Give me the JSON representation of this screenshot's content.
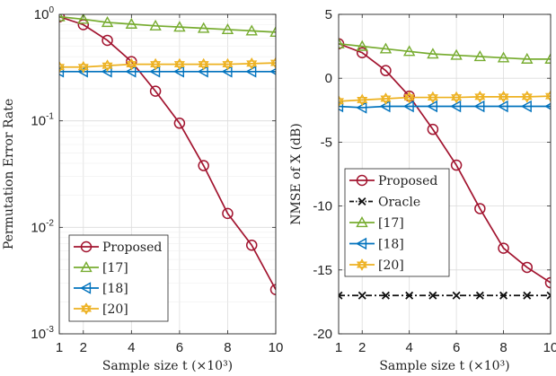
{
  "chart_data": [
    {
      "type": "line",
      "ylabel": "Permutation Error Rate",
      "xlabel": "Sample size t (×10³)",
      "x": [
        1,
        2,
        3,
        4,
        5,
        6,
        7,
        8,
        9,
        10
      ],
      "xticks": [
        "1",
        "2",
        "4",
        "6",
        "8",
        "10"
      ],
      "xtick_values": [
        1,
        2,
        4,
        6,
        8,
        10
      ],
      "xlim": [
        1,
        10
      ],
      "yscale": "log",
      "ylim": [
        0.001,
        1
      ],
      "ytick_values": [
        1,
        0.1,
        0.01,
        0.001
      ],
      "ytick_labels": [
        {
          "base": "10",
          "exp": "0"
        },
        {
          "base": "10",
          "exp": "-1"
        },
        {
          "base": "10",
          "exp": "-2"
        },
        {
          "base": "10",
          "exp": "-3"
        }
      ],
      "grid": true,
      "legend_position": "bottom-left",
      "series": [
        {
          "name": "Proposed",
          "color": "#a2142f",
          "marker": "circle",
          "dash": "solid",
          "values": [
            0.95,
            0.8,
            0.57,
            0.36,
            0.19,
            0.095,
            0.038,
            0.0135,
            0.0068,
            0.0026
          ]
        },
        {
          "name": "[17]",
          "color": "#77ac30",
          "marker": "triangle-up",
          "dash": "solid",
          "values": [
            0.95,
            0.9,
            0.84,
            0.81,
            0.78,
            0.76,
            0.74,
            0.72,
            0.7,
            0.68
          ]
        },
        {
          "name": "[18]",
          "color": "#0072bd",
          "marker": "triangle-left",
          "dash": "solid",
          "values": [
            0.29,
            0.29,
            0.29,
            0.29,
            0.29,
            0.29,
            0.29,
            0.29,
            0.29,
            0.29
          ]
        },
        {
          "name": "[20]",
          "color": "#edb120",
          "marker": "hexagram",
          "dash": "solid",
          "values": [
            0.32,
            0.32,
            0.33,
            0.34,
            0.34,
            0.34,
            0.34,
            0.34,
            0.345,
            0.35
          ]
        }
      ]
    },
    {
      "type": "line",
      "ylabel": "NMSE of X (dB)",
      "xlabel": "Sample size t (×10³)",
      "x": [
        1,
        2,
        3,
        4,
        5,
        6,
        7,
        8,
        9,
        10
      ],
      "xticks": [
        "1",
        "2",
        "4",
        "6",
        "8",
        "10"
      ],
      "xtick_values": [
        1,
        2,
        4,
        6,
        8,
        10
      ],
      "xlim": [
        1,
        10
      ],
      "ylim": [
        -20,
        5
      ],
      "ytick_values": [
        5,
        0,
        -5,
        -10,
        -15,
        -20
      ],
      "yticks": [
        "5",
        "0",
        "-5",
        "-10",
        "-15",
        "-20"
      ],
      "grid": true,
      "legend_position": "left-middle",
      "series": [
        {
          "name": "Proposed",
          "color": "#a2142f",
          "marker": "circle",
          "dash": "solid",
          "values": [
            2.7,
            2.0,
            0.6,
            -1.4,
            -4.0,
            -6.8,
            -10.2,
            -13.3,
            -14.8,
            -16.0
          ]
        },
        {
          "name": "Oracle",
          "color": "#111111",
          "marker": "x",
          "dash": "dashdot",
          "values": [
            -17,
            -17,
            -17,
            -17,
            -17,
            -17,
            -17,
            -17,
            -17,
            -17
          ]
        },
        {
          "name": "[17]",
          "color": "#77ac30",
          "marker": "triangle-up",
          "dash": "solid",
          "values": [
            2.7,
            2.5,
            2.3,
            2.1,
            1.9,
            1.8,
            1.7,
            1.6,
            1.5,
            1.5
          ]
        },
        {
          "name": "[18]",
          "color": "#0072bd",
          "marker": "triangle-left",
          "dash": "solid",
          "values": [
            -2.2,
            -2.3,
            -2.2,
            -2.2,
            -2.2,
            -2.2,
            -2.2,
            -2.2,
            -2.2,
            -2.2
          ]
        },
        {
          "name": "[20]",
          "color": "#edb120",
          "marker": "hexagram",
          "dash": "solid",
          "values": [
            -1.8,
            -1.7,
            -1.6,
            -1.5,
            -1.5,
            -1.5,
            -1.45,
            -1.45,
            -1.45,
            -1.4
          ]
        }
      ]
    }
  ]
}
